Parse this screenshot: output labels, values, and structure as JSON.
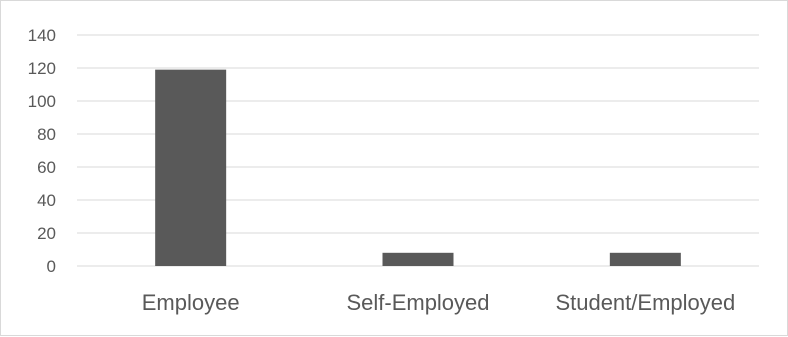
{
  "chart_data": {
    "type": "bar",
    "title": "",
    "xlabel": "",
    "ylabel": "",
    "categories": [
      "Employee",
      "Self-Employed",
      "Student/Employed"
    ],
    "values": [
      119,
      8,
      8
    ],
    "ylim": [
      0,
      140
    ],
    "yticks": [
      "0",
      "20",
      "40",
      "60",
      "80",
      "100",
      "120",
      "140"
    ],
    "grid": true,
    "legend": "none",
    "colors": {
      "bar": "#595959",
      "grid": "#d9d9d9",
      "text": "#595959"
    }
  }
}
